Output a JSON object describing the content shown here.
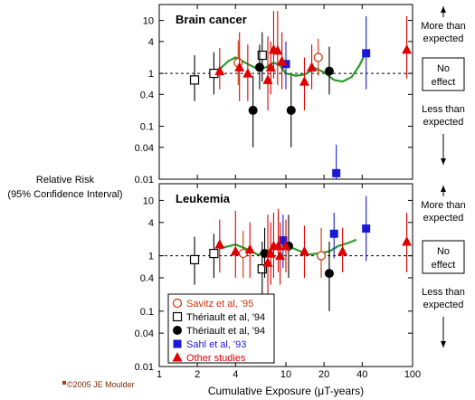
{
  "chart_data": {
    "type": "scatter",
    "x_scale": "log",
    "y_scale": "log",
    "xlabel": "Cumulative Exposure (μT-years)",
    "ylabel_line1": "Relative Risk",
    "ylabel_line2": "(95% Confidence Interval)",
    "xlim": [
      1,
      100
    ],
    "ylim": [
      0.01,
      20
    ],
    "x_ticks": [
      "1",
      "2",
      "4",
      "10",
      "20",
      "40",
      "100"
    ],
    "y_ticks": [
      "10",
      "4",
      "1",
      "0.4",
      "0.1",
      "0.04",
      "0.01"
    ],
    "reference_line": 1,
    "right_labels": {
      "more": [
        "More than",
        "expected"
      ],
      "none": [
        "No",
        "effect"
      ],
      "less": [
        "Less than",
        "expected"
      ]
    },
    "credit": "©2005 JE Moulder",
    "legend": [
      {
        "label": "Savitz et al, '95",
        "color": "#cc3300",
        "marker": "circle-open"
      },
      {
        "label": "Thériault et al, '94",
        "color": "#000000",
        "marker": "square-open"
      },
      {
        "label": "Thériault et al, '94",
        "color": "#000000",
        "marker": "circle-filled"
      },
      {
        "label": "Sahl et al, '93",
        "color": "#1a1ad6",
        "marker": "square-filled"
      },
      {
        "label": "Other studies",
        "color": "#e00000",
        "marker": "triangle-filled"
      }
    ],
    "panels": [
      {
        "title": "Brain cancer",
        "trend": [
          [
            3,
            1.2
          ],
          [
            3.5,
            1.7
          ],
          [
            4,
            2.0
          ],
          [
            5,
            1.5
          ],
          [
            6,
            1.2
          ],
          [
            7,
            1.3
          ],
          [
            8,
            1.6
          ],
          [
            9,
            1.4
          ],
          [
            10,
            1.0
          ],
          [
            12,
            0.9
          ],
          [
            14,
            0.95
          ],
          [
            17,
            1.25
          ],
          [
            20,
            1.05
          ],
          [
            24,
            0.75
          ],
          [
            28,
            0.7
          ],
          [
            33,
            0.85
          ],
          [
            38,
            1.4
          ],
          [
            42,
            2.3
          ]
        ],
        "series": [
          {
            "name": "Savitz et al, '95",
            "color": "#cc3300",
            "marker": "circle-open",
            "points": [
              {
                "x": 4.2,
                "y": 1.6,
                "lo": 0.6,
                "hi": 4.2
              },
              {
                "x": 18,
                "y": 2.0,
                "lo": 0.9,
                "hi": 4.5
              }
            ]
          },
          {
            "name": "Thériault et al, '94",
            "color": "#000000",
            "marker": "square-open",
            "points": [
              {
                "x": 1.9,
                "y": 0.75,
                "lo": 0.3,
                "hi": 2.2
              },
              {
                "x": 2.7,
                "y": 1.0,
                "lo": 0.4,
                "hi": 2.5
              },
              {
                "x": 6.5,
                "y": 2.2,
                "lo": 0.7,
                "hi": 6.0
              }
            ]
          },
          {
            "name": "Thériault et al, '94",
            "color": "#000000",
            "marker": "circle-filled",
            "points": [
              {
                "x": 5.5,
                "y": 0.2,
                "lo": 0.04,
                "hi": 0.9
              },
              {
                "x": 6.2,
                "y": 1.3,
                "lo": 0.5,
                "hi": 3.5
              },
              {
                "x": 11,
                "y": 0.2,
                "lo": 0.04,
                "hi": 0.9
              },
              {
                "x": 22,
                "y": 1.1,
                "lo": 0.4,
                "hi": 3.2
              }
            ]
          },
          {
            "name": "Sahl et al, '93",
            "color": "#1a1ad6",
            "marker": "square-filled",
            "points": [
              {
                "x": 10,
                "y": 1.5,
                "lo": 0.5,
                "hi": 4.0
              },
              {
                "x": 25,
                "y": 0.013,
                "lo": 0.01,
                "hi": 0.045
              },
              {
                "x": 43,
                "y": 2.4,
                "lo": 0.5,
                "hi": 12
              }
            ]
          },
          {
            "name": "Other studies",
            "color": "#e00000",
            "marker": "triangle-filled",
            "points": [
              {
                "x": 3,
                "y": 1.1,
                "lo": 0.5,
                "hi": 3.0
              },
              {
                "x": 4.3,
                "y": 1.3,
                "lo": 0.3,
                "hi": 6.0
              },
              {
                "x": 5,
                "y": 1.0,
                "lo": 0.3,
                "hi": 3.5
              },
              {
                "x": 7.2,
                "y": 0.75,
                "lo": 0.2,
                "hi": 5.0
              },
              {
                "x": 7.6,
                "y": 1.3,
                "lo": 0.4,
                "hi": 4.0
              },
              {
                "x": 8,
                "y": 2.8,
                "lo": 0.8,
                "hi": 15
              },
              {
                "x": 8.6,
                "y": 2.7,
                "lo": 0.6,
                "hi": 15
              },
              {
                "x": 9.3,
                "y": 1.7,
                "lo": 0.5,
                "hi": 6.0
              },
              {
                "x": 14,
                "y": 0.7,
                "lo": 0.2,
                "hi": 2.0
              },
              {
                "x": 16,
                "y": 1.3,
                "lo": 0.5,
                "hi": 3.5
              },
              {
                "x": 90,
                "y": 2.8,
                "lo": 0.8,
                "hi": 12
              }
            ]
          }
        ]
      },
      {
        "title": "Leukemia",
        "trend": [
          [
            3,
            1.35
          ],
          [
            4,
            1.6
          ],
          [
            5,
            1.3
          ],
          [
            6,
            1.05
          ],
          [
            7,
            1.15
          ],
          [
            8,
            1.4
          ],
          [
            9,
            1.5
          ],
          [
            10,
            1.55
          ],
          [
            12,
            1.3
          ],
          [
            15,
            1.05
          ],
          [
            18,
            1.1
          ],
          [
            22,
            1.2
          ],
          [
            26,
            1.5
          ],
          [
            31,
            1.7
          ],
          [
            36,
            1.95
          ]
        ],
        "series": [
          {
            "name": "Savitz et al, '95",
            "color": "#cc3300",
            "marker": "circle-open",
            "points": [
              {
                "x": 4.6,
                "y": 1.1,
                "lo": 0.4,
                "hi": 2.8
              },
              {
                "x": 19,
                "y": 1.0,
                "lo": 0.4,
                "hi": 3.2
              }
            ]
          },
          {
            "name": "Thériault et al, '94",
            "color": "#000000",
            "marker": "square-open",
            "points": [
              {
                "x": 1.9,
                "y": 0.85,
                "lo": 0.3,
                "hi": 2.2
              },
              {
                "x": 2.7,
                "y": 1.1,
                "lo": 0.4,
                "hi": 2.5
              },
              {
                "x": 6.5,
                "y": 0.58,
                "lo": 0.2,
                "hi": 1.8
              }
            ]
          },
          {
            "name": "Thériault et al, '94",
            "color": "#000000",
            "marker": "circle-filled",
            "points": [
              {
                "x": 6.8,
                "y": 1.1,
                "lo": 0.4,
                "hi": 3.2
              },
              {
                "x": 10.5,
                "y": 1.5,
                "lo": 0.4,
                "hi": 5.5
              },
              {
                "x": 22,
                "y": 0.48,
                "lo": 0.1,
                "hi": 1.8
              }
            ]
          },
          {
            "name": "Sahl et al, '93",
            "color": "#1a1ad6",
            "marker": "square-filled",
            "points": [
              {
                "x": 9.5,
                "y": 1.9,
                "lo": 0.6,
                "hi": 5.5
              },
              {
                "x": 24,
                "y": 2.5,
                "lo": 0.9,
                "hi": 6.0
              },
              {
                "x": 43,
                "y": 3.1,
                "lo": 0.8,
                "hi": 12
              }
            ]
          },
          {
            "name": "Other studies",
            "color": "#e00000",
            "marker": "triangle-filled",
            "points": [
              {
                "x": 3,
                "y": 1.6,
                "lo": 0.5,
                "hi": 4.5
              },
              {
                "x": 4,
                "y": 1.2,
                "lo": 0.4,
                "hi": 6.5
              },
              {
                "x": 5.2,
                "y": 1.3,
                "lo": 0.4,
                "hi": 4.0
              },
              {
                "x": 7.2,
                "y": 0.75,
                "lo": 0.2,
                "hi": 5.5
              },
              {
                "x": 7.6,
                "y": 1.1,
                "lo": 0.3,
                "hi": 4.0
              },
              {
                "x": 8,
                "y": 1.5,
                "lo": 0.4,
                "hi": 6.0
              },
              {
                "x": 8.7,
                "y": 1.5,
                "lo": 0.5,
                "hi": 7.0
              },
              {
                "x": 9,
                "y": 1.0,
                "lo": 0.3,
                "hi": 4.0
              },
              {
                "x": 10,
                "y": 1.5,
                "lo": 0.5,
                "hi": 4.5
              },
              {
                "x": 14,
                "y": 1.2,
                "lo": 0.4,
                "hi": 3.5
              },
              {
                "x": 28,
                "y": 1.2,
                "lo": 0.5,
                "hi": 3.2
              },
              {
                "x": 90,
                "y": 1.8,
                "lo": 0.5,
                "hi": 6.0
              }
            ]
          }
        ]
      }
    ]
  }
}
